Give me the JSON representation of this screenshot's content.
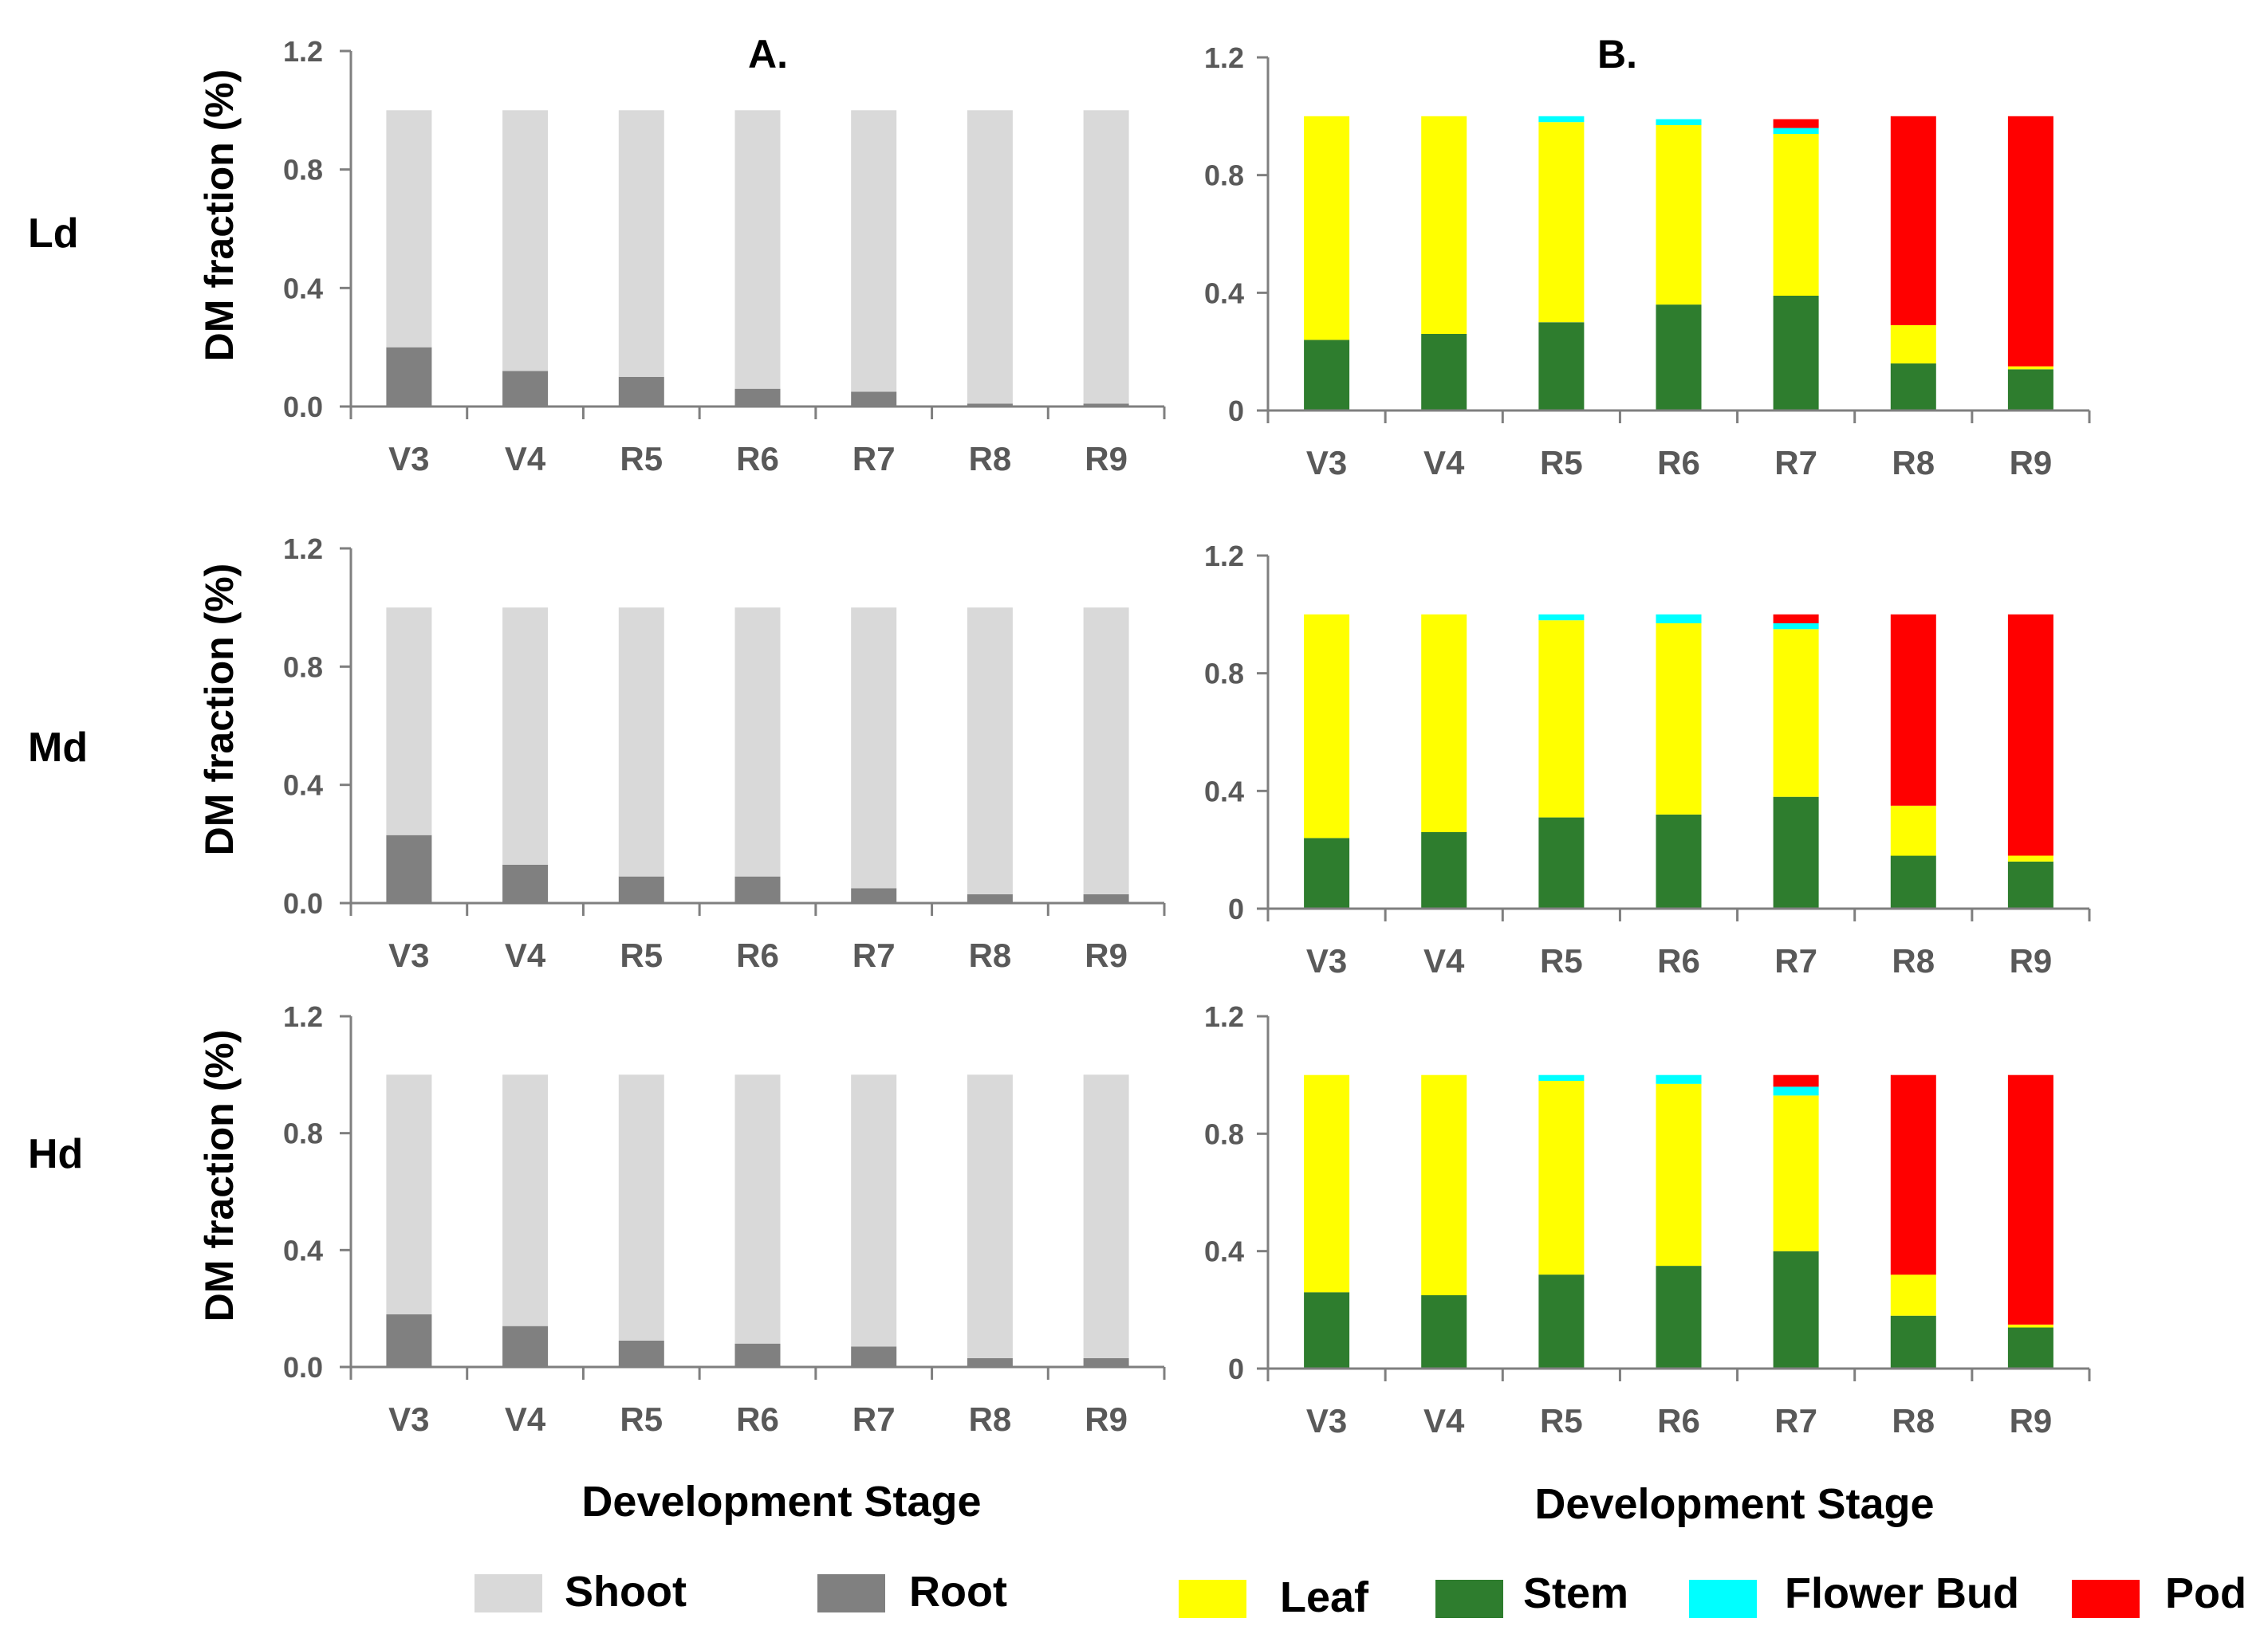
{
  "figure": {
    "panel_titles": [
      "A.",
      "B."
    ],
    "row_labels": [
      "Ld",
      "Md",
      "Hd"
    ],
    "xlabel": "Development Stage",
    "ylabel": "DM fraction (%)",
    "legend": [
      {
        "label": "Shoot",
        "color": "#d9d9d9"
      },
      {
        "label": "Root",
        "color": "#808080"
      },
      {
        "label": "Leaf",
        "color": "#ffff00"
      },
      {
        "label": "Stem",
        "color": "#2e7d2e"
      },
      {
        "label": "Flower Bud",
        "color": "#00ffff"
      },
      {
        "label": "Pod",
        "color": "#ff0000"
      }
    ]
  },
  "chart_data": [
    {
      "type": "bar",
      "stacked": true,
      "panel": "A.",
      "row": "Ld",
      "categories": [
        "V3",
        "V4",
        "R5",
        "R6",
        "R7",
        "R8",
        "R9"
      ],
      "ylim": [
        0,
        1.2
      ],
      "yticks": [
        "0.0",
        "0.4",
        "0.8",
        "1.2"
      ],
      "series": [
        {
          "name": "Root",
          "color": "#808080",
          "values": [
            0.2,
            0.12,
            0.1,
            0.06,
            0.05,
            0.01,
            0.01
          ]
        },
        {
          "name": "Shoot",
          "color": "#d9d9d9",
          "values": [
            0.8,
            0.88,
            0.9,
            0.94,
            0.95,
            0.99,
            0.99
          ]
        }
      ]
    },
    {
      "type": "bar",
      "stacked": true,
      "panel": "B.",
      "row": "Ld",
      "categories": [
        "V3",
        "V4",
        "R5",
        "R6",
        "R7",
        "R8",
        "R9"
      ],
      "ylim": [
        0,
        1.2
      ],
      "yticks": [
        "0",
        "0.4",
        "0.8",
        "1.2"
      ],
      "series": [
        {
          "name": "Stem",
          "color": "#2e7d2e",
          "values": [
            0.24,
            0.26,
            0.3,
            0.36,
            0.39,
            0.16,
            0.14
          ]
        },
        {
          "name": "Leaf",
          "color": "#ffff00",
          "values": [
            0.76,
            0.74,
            0.68,
            0.61,
            0.55,
            0.13,
            0.01
          ]
        },
        {
          "name": "Flower Bud",
          "color": "#00ffff",
          "values": [
            0,
            0,
            0.02,
            0.02,
            0.02,
            0,
            0
          ]
        },
        {
          "name": "Pod",
          "color": "#ff0000",
          "values": [
            0,
            0,
            0,
            0,
            0.03,
            0.71,
            0.85
          ]
        }
      ]
    },
    {
      "type": "bar",
      "stacked": true,
      "panel": "A.",
      "row": "Md",
      "categories": [
        "V3",
        "V4",
        "R5",
        "R6",
        "R7",
        "R8",
        "R9"
      ],
      "ylim": [
        0,
        1.2
      ],
      "yticks": [
        "0.0",
        "0.4",
        "0.8",
        "1.2"
      ],
      "series": [
        {
          "name": "Root",
          "color": "#808080",
          "values": [
            0.23,
            0.13,
            0.09,
            0.09,
            0.05,
            0.03,
            0.03
          ]
        },
        {
          "name": "Shoot",
          "color": "#d9d9d9",
          "values": [
            0.77,
            0.87,
            0.91,
            0.91,
            0.95,
            0.97,
            0.97
          ]
        }
      ]
    },
    {
      "type": "bar",
      "stacked": true,
      "panel": "B.",
      "row": "Md",
      "categories": [
        "V3",
        "V4",
        "R5",
        "R6",
        "R7",
        "R8",
        "R9"
      ],
      "ylim": [
        0,
        1.2
      ],
      "yticks": [
        "0",
        "0.4",
        "0.8",
        "1.2"
      ],
      "series": [
        {
          "name": "Stem",
          "color": "#2e7d2e",
          "values": [
            0.24,
            0.26,
            0.31,
            0.32,
            0.38,
            0.18,
            0.16
          ]
        },
        {
          "name": "Leaf",
          "color": "#ffff00",
          "values": [
            0.76,
            0.74,
            0.67,
            0.65,
            0.57,
            0.17,
            0.02
          ]
        },
        {
          "name": "Flower Bud",
          "color": "#00ffff",
          "values": [
            0,
            0,
            0.02,
            0.03,
            0.02,
            0,
            0
          ]
        },
        {
          "name": "Pod",
          "color": "#ff0000",
          "values": [
            0,
            0,
            0,
            0,
            0.03,
            0.65,
            0.82
          ]
        }
      ]
    },
    {
      "type": "bar",
      "stacked": true,
      "panel": "A.",
      "row": "Hd",
      "categories": [
        "V3",
        "V4",
        "R5",
        "R6",
        "R7",
        "R8",
        "R9"
      ],
      "ylim": [
        0,
        1.2
      ],
      "yticks": [
        "0.0",
        "0.4",
        "0.8",
        "1.2"
      ],
      "series": [
        {
          "name": "Root",
          "color": "#808080",
          "values": [
            0.18,
            0.14,
            0.09,
            0.08,
            0.07,
            0.03,
            0.03
          ]
        },
        {
          "name": "Shoot",
          "color": "#d9d9d9",
          "values": [
            0.82,
            0.86,
            0.91,
            0.92,
            0.93,
            0.97,
            0.97
          ]
        }
      ]
    },
    {
      "type": "bar",
      "stacked": true,
      "panel": "B.",
      "row": "Hd",
      "categories": [
        "V3",
        "V4",
        "R5",
        "R6",
        "R7",
        "R8",
        "R9"
      ],
      "ylim": [
        0,
        1.2
      ],
      "yticks": [
        "0",
        "0.4",
        "0.8",
        "1.2"
      ],
      "series": [
        {
          "name": "Stem",
          "color": "#2e7d2e",
          "values": [
            0.26,
            0.25,
            0.32,
            0.35,
            0.4,
            0.18,
            0.14
          ]
        },
        {
          "name": "Leaf",
          "color": "#ffff00",
          "values": [
            0.74,
            0.75,
            0.66,
            0.62,
            0.53,
            0.14,
            0.01
          ]
        },
        {
          "name": "Flower Bud",
          "color": "#00ffff",
          "values": [
            0,
            0,
            0.02,
            0.03,
            0.03,
            0,
            0
          ]
        },
        {
          "name": "Pod",
          "color": "#ff0000",
          "values": [
            0,
            0,
            0,
            0,
            0.04,
            0.68,
            0.85
          ]
        }
      ]
    }
  ]
}
